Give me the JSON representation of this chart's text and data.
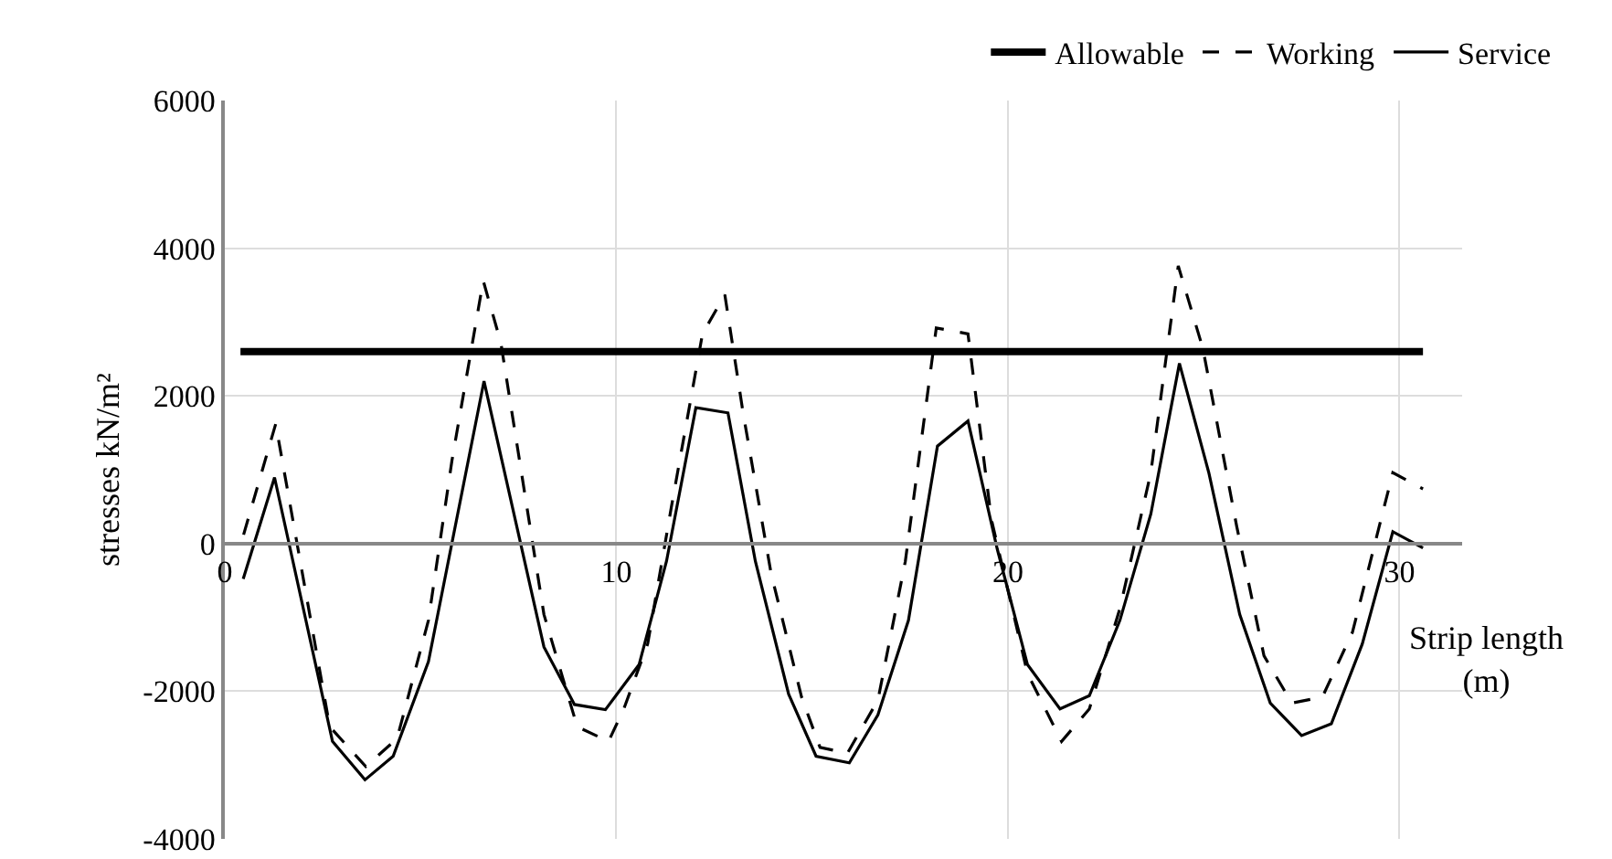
{
  "chart_data": {
    "type": "line",
    "xlabel": "Strip length\n(m)",
    "ylabel": "stresses kN/m²",
    "xlim": [
      0,
      31.6
    ],
    "xticks": [
      0,
      10,
      20,
      30
    ],
    "ylim": [
      -4000,
      6000
    ],
    "yticks": [
      -4000,
      -2000,
      0,
      2000,
      4000,
      6000
    ],
    "grid": true,
    "legend": "top right",
    "marker": "none",
    "series": [
      {
        "name": "Allowable",
        "color": "#000000",
        "line_style": "solid",
        "x": [
          0.4,
          30.6
        ],
        "values": [
          2600,
          2600
        ]
      },
      {
        "name": "Working",
        "color": "#000000",
        "line_style": "dashed",
        "x": [
          0.48,
          1.3,
          2.68,
          3.6,
          4.4,
          5.2,
          5.8,
          6.6,
          7.05,
          8.15,
          9.0,
          9.8,
          10.19,
          10.8,
          11.4,
          12.2,
          12.77,
          13.24,
          13.95,
          14.73,
          15.2,
          15.9,
          16.68,
          17.38,
          18.17,
          18.98,
          19.58,
          20.5,
          21.37,
          22.08,
          22.86,
          23.65,
          24.35,
          24.98,
          25.84,
          26.54,
          27.25,
          28.03,
          28.8,
          29.83,
          30.6
        ],
        "values": [
          120,
          1620,
          -2480,
          -3020,
          -2640,
          -1040,
          1120,
          3560,
          2720,
          -960,
          -2480,
          -2680,
          -2240,
          -1360,
          480,
          2840,
          3370,
          1760,
          -400,
          -2080,
          -2760,
          -2840,
          -2120,
          -240,
          2920,
          2840,
          320,
          -1760,
          -2680,
          -2240,
          -880,
          960,
          3760,
          2640,
          240,
          -1520,
          -2160,
          -2080,
          -1200,
          960,
          740
        ]
      },
      {
        "name": "Service",
        "color": "#000000",
        "line_style": "solid",
        "x": [
          0.47,
          1.27,
          2.75,
          3.58,
          4.3,
          5.2,
          6.62,
          8.15,
          8.93,
          9.72,
          10.58,
          11.28,
          12.03,
          12.85,
          13.55,
          14.4,
          15.1,
          15.95,
          16.68,
          17.46,
          18.2,
          18.98,
          19.73,
          20.5,
          21.33,
          22.08,
          22.86,
          23.65,
          24.38,
          25.13,
          25.92,
          26.7,
          27.5,
          28.26,
          29.05,
          29.83,
          30.6
        ],
        "values": [
          -480,
          895,
          -2680,
          -3200,
          -2880,
          -1600,
          2200,
          -1400,
          -2180,
          -2250,
          -1640,
          -240,
          1840,
          1770,
          -240,
          -2040,
          -2880,
          -2970,
          -2320,
          -1040,
          1320,
          1660,
          -80,
          -1640,
          -2240,
          -2060,
          -1040,
          400,
          2440,
          960,
          -960,
          -2160,
          -2600,
          -2440,
          -1360,
          160,
          -60
        ]
      }
    ]
  }
}
